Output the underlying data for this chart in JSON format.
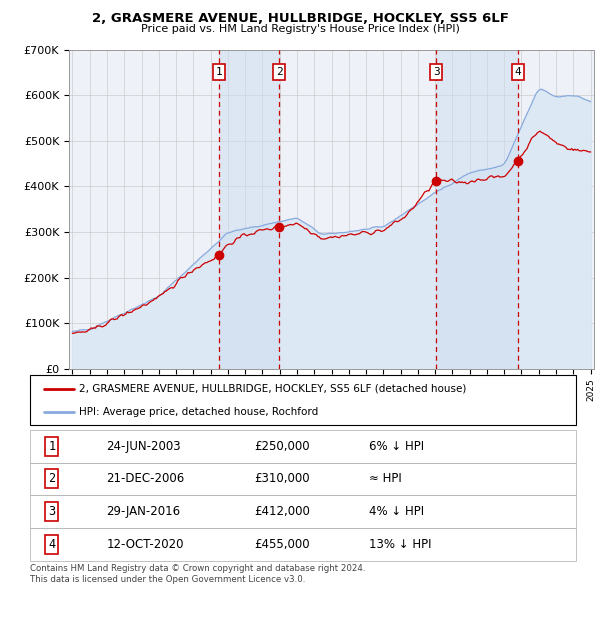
{
  "title": "2, GRASMERE AVENUE, HULLBRIDGE, HOCKLEY, SS5 6LF",
  "subtitle": "Price paid vs. HM Land Registry's House Price Index (HPI)",
  "ylim": [
    0,
    700000
  ],
  "yticks": [
    0,
    100000,
    200000,
    300000,
    400000,
    500000,
    600000,
    700000
  ],
  "ytick_labels": [
    "£0",
    "£100K",
    "£200K",
    "£300K",
    "£400K",
    "£500K",
    "£600K",
    "£700K"
  ],
  "x_start_year": 1995,
  "x_end_year": 2025,
  "sale_color": "#cc0000",
  "hpi_color": "#88aadd",
  "hpi_fill_color": "#dde8f5",
  "grid_color": "#cccccc",
  "bg_color": "#eef2f8",
  "purchases": [
    {
      "year": 2003.48,
      "price": 250000,
      "label": "1"
    },
    {
      "year": 2006.97,
      "price": 310000,
      "label": "2"
    },
    {
      "year": 2016.07,
      "price": 412000,
      "label": "3"
    },
    {
      "year": 2020.79,
      "price": 455000,
      "label": "4"
    }
  ],
  "legend_house_label": "2, GRASMERE AVENUE, HULLBRIDGE, HOCKLEY, SS5 6LF (detached house)",
  "legend_hpi_label": "HPI: Average price, detached house, Rochford",
  "table_rows": [
    {
      "num": "1",
      "date": "24-JUN-2003",
      "price": "£250,000",
      "hpi": "6% ↓ HPI"
    },
    {
      "num": "2",
      "date": "21-DEC-2006",
      "price": "£310,000",
      "hpi": "≈ HPI"
    },
    {
      "num": "3",
      "date": "29-JAN-2016",
      "price": "£412,000",
      "hpi": "4% ↓ HPI"
    },
    {
      "num": "4",
      "date": "12-OCT-2020",
      "price": "£455,000",
      "hpi": "13% ↓ HPI"
    }
  ],
  "footer": "Contains HM Land Registry data © Crown copyright and database right 2024.\nThis data is licensed under the Open Government Licence v3.0.",
  "dashed_line_color": "#cc0000",
  "shade_color": "#ccddf0"
}
